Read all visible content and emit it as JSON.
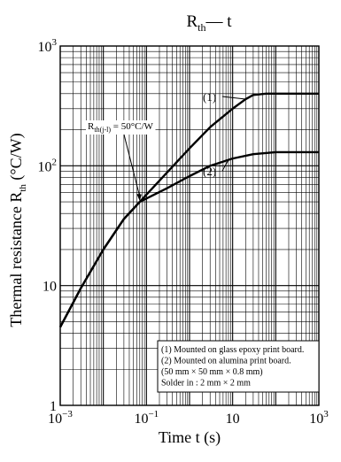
{
  "chart_data": {
    "type": "line",
    "title": "R",
    "title_sub": "th",
    "title_rest": "— t",
    "xlabel": "Time  t  (s)",
    "ylabel_main": "Thermal resistance  R",
    "ylabel_sub": "th",
    "ylabel_unit": "  (°C/W)",
    "x_scale": "log",
    "y_scale": "log",
    "xlim": [
      0.001,
      1000
    ],
    "ylim": [
      1,
      1000
    ],
    "grid": true,
    "x_ticks": [
      {
        "value": 0.001,
        "base": "10",
        "exp": "−3"
      },
      {
        "value": 0.1,
        "base": "10",
        "exp": "−1"
      },
      {
        "value": 10,
        "base": "10",
        "exp": ""
      },
      {
        "value": 1000,
        "base": "10",
        "exp": "3"
      }
    ],
    "y_ticks": [
      {
        "value": 1,
        "base": "1",
        "exp": ""
      },
      {
        "value": 10,
        "base": "10",
        "exp": ""
      },
      {
        "value": 100,
        "base": "10",
        "exp": "2"
      },
      {
        "value": 1000,
        "base": "10",
        "exp": "3"
      }
    ],
    "series": [
      {
        "name": "(1)",
        "x": [
          0.001,
          0.003,
          0.01,
          0.03,
          0.07,
          0.2,
          1,
          3,
          10,
          20,
          30,
          60,
          100,
          1000
        ],
        "y": [
          4.5,
          9.5,
          20,
          36,
          50,
          75,
          140,
          210,
          300,
          360,
          390,
          400,
          400,
          400
        ]
      },
      {
        "name": "(2)",
        "x": [
          0.001,
          0.003,
          0.01,
          0.03,
          0.07,
          0.3,
          1,
          3,
          10,
          30,
          100,
          1000
        ],
        "y": [
          4.5,
          9.5,
          20,
          36,
          50,
          65,
          82,
          100,
          115,
          125,
          130,
          130
        ]
      }
    ],
    "annotations": [
      {
        "text_main": "R",
        "text_sub": "th(j-l)",
        "text_rest": " = 50°C/W",
        "x": 0.07,
        "y": 50
      },
      {
        "text": "(1)"
      },
      {
        "text": "(2)"
      }
    ],
    "legend_box": {
      "lines": [
        "(1) Mounted on glass epoxy print board.",
        "(2) Mounted on alumina print board.",
        "      (50 mm × 50 mm × 0.8 mm)",
        "      Solder in : 2 mm × 2 mm"
      ]
    }
  }
}
